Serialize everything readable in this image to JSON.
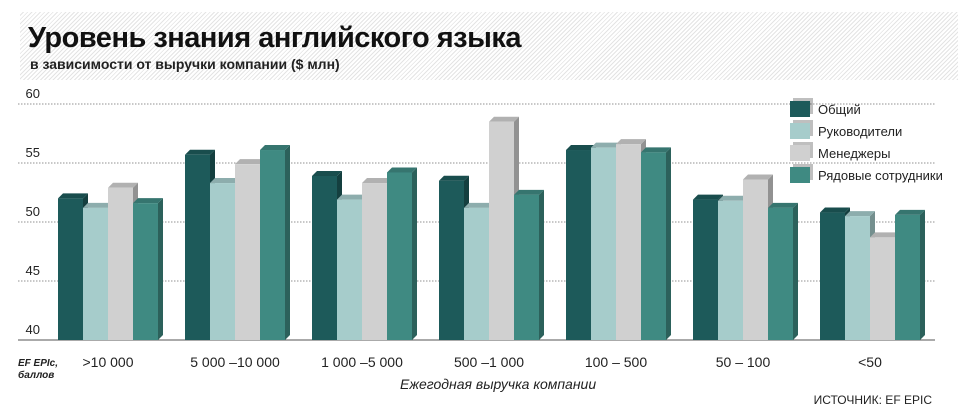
{
  "header": {
    "title": "Уровень знания английского языка",
    "subtitle": "в зависимости от выручки компании ($ млн)"
  },
  "source": "ИСТОЧНИК: EF EPIC",
  "y_unit_label": [
    "EF EPIc,",
    "баллов"
  ],
  "colors": {
    "Общий": "#1d5a5a",
    "Руководители": "#a6cccb",
    "Менеджеры": "#d0d0d0",
    "Рядовые сотрудники": "#3f8a82"
  },
  "chart_data": {
    "type": "bar",
    "xlabel": "Ежегодная выручка компании",
    "ylabel": "",
    "ylim": [
      40,
      60
    ],
    "yticks": [
      40,
      45,
      50,
      55,
      60
    ],
    "grid": true,
    "legend_position": "top-right",
    "categories": [
      ">10 000",
      "5 000 –10 000",
      "1 000 –5 000",
      "500 –1 000",
      "100 – 500",
      "50 – 100",
      "<50"
    ],
    "series": [
      {
        "name": "Общий",
        "values": [
          52.0,
          55.7,
          53.9,
          53.5,
          56.1,
          51.9,
          50.8
        ]
      },
      {
        "name": "Руководители",
        "values": [
          51.2,
          53.3,
          51.9,
          51.2,
          56.3,
          51.8,
          50.5
        ]
      },
      {
        "name": "Менеджеры",
        "values": [
          52.9,
          54.9,
          53.3,
          58.5,
          56.6,
          53.6,
          48.7
        ]
      },
      {
        "name": "Рядовые сотрудники",
        "values": [
          51.6,
          56.1,
          54.2,
          52.3,
          55.9,
          51.2,
          50.6
        ]
      }
    ]
  }
}
